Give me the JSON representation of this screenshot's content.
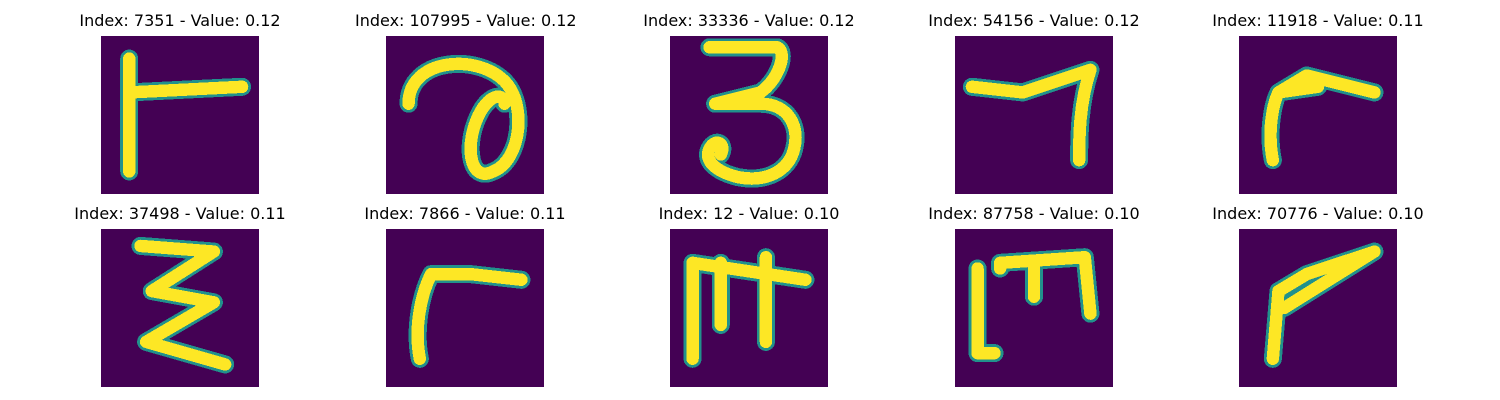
{
  "colormap": {
    "background": "#440154",
    "edge": "#21918c",
    "foreground": "#fde725"
  },
  "panels": [
    {
      "title": "Index: 7351 - Value: 0.12",
      "glyph": "digit-glyph-1"
    },
    {
      "title": "Index: 107995 - Value: 0.12",
      "glyph": "digit-glyph-2"
    },
    {
      "title": "Index: 33336 - Value: 0.12",
      "glyph": "digit-glyph-3"
    },
    {
      "title": "Index: 54156 - Value: 0.12",
      "glyph": "digit-glyph-4"
    },
    {
      "title": "Index: 11918 - Value: 0.11",
      "glyph": "digit-glyph-5"
    },
    {
      "title": "Index: 37498 - Value: 0.11",
      "glyph": "digit-glyph-6"
    },
    {
      "title": "Index: 7866 - Value: 0.11",
      "glyph": "digit-glyph-7"
    },
    {
      "title": "Index: 12 - Value: 0.10",
      "glyph": "digit-glyph-8"
    },
    {
      "title": "Index: 87758 - Value: 0.10",
      "glyph": "digit-glyph-9"
    },
    {
      "title": "Index: 70776 - Value: 0.10",
      "glyph": "digit-glyph-10"
    }
  ]
}
